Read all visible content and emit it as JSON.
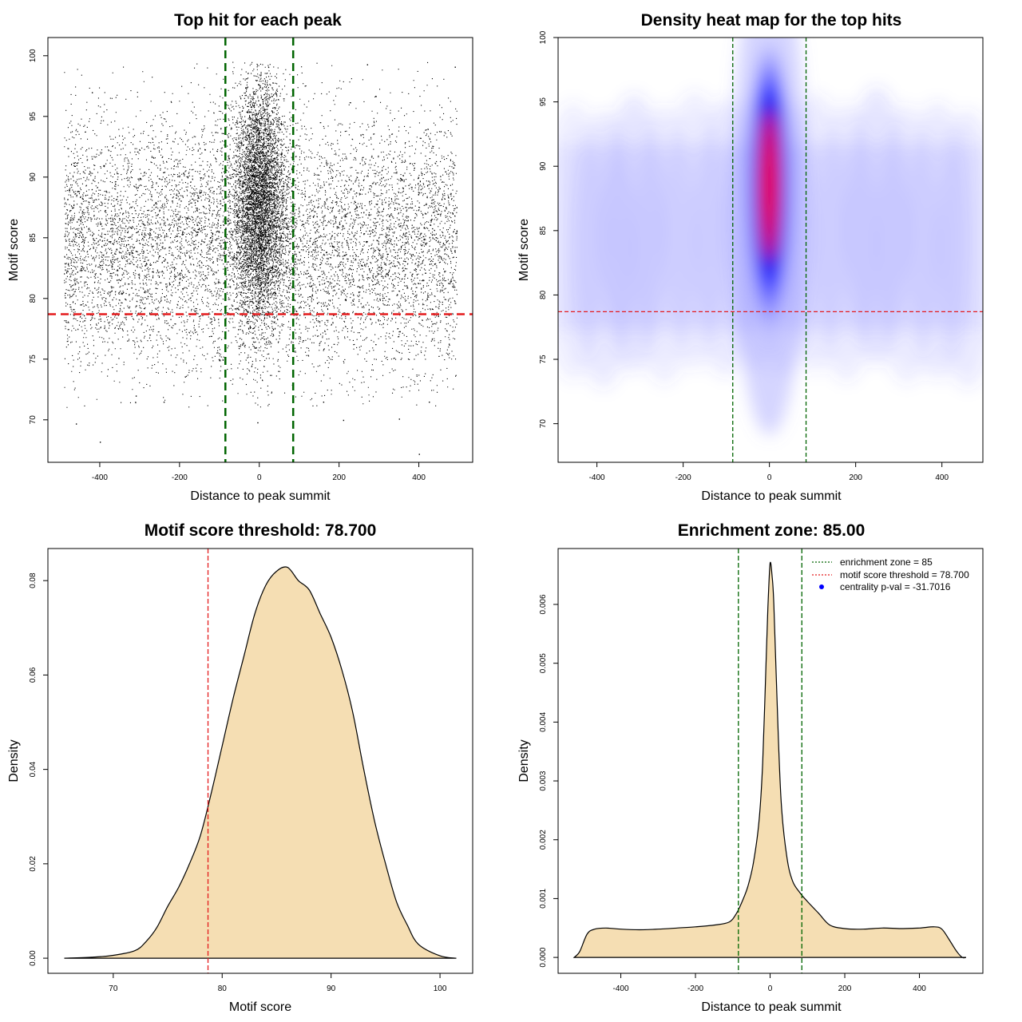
{
  "colors": {
    "threshold": "#e41a1c",
    "zone": "#006400",
    "fill": "#f5deb3",
    "points": "#000000",
    "heat_low": "#ffffff",
    "heat_mid": "#0000ff",
    "heat_high": "#ff0000"
  },
  "chart_data": [
    {
      "id": "scatter",
      "type": "scatter",
      "title": "Top hit for each peak",
      "xlabel": "Distance to peak summit",
      "ylabel": "Motif score",
      "xlim": [
        -530,
        535
      ],
      "ylim": [
        66.5,
        101.5
      ],
      "xticks": [
        -400,
        -200,
        0,
        200,
        400
      ],
      "yticks": [
        70,
        75,
        80,
        85,
        90,
        95,
        100
      ],
      "threshold": 78.7,
      "zone": [
        -85,
        85
      ],
      "background": {
        "x_range": [
          -490,
          495
        ],
        "score_mean": 84.5,
        "score_sd": 5.2
      },
      "central": {
        "x_sd": 32,
        "score_mean": 88.0,
        "score_sd": 5.0
      },
      "outliers": [
        [
          -460,
          69.7
        ],
        [
          -400,
          68.2
        ],
        [
          -240,
          71.5
        ],
        [
          -310,
          72.0
        ],
        [
          160,
          71.5
        ],
        [
          210,
          70.0
        ],
        [
          350,
          70.1
        ],
        [
          400,
          67.2
        ],
        [
          425,
          71.5
        ],
        [
          270,
          99.3
        ],
        [
          490,
          99.1
        ],
        [
          -5,
          69.8
        ],
        [
          -420,
          97.0
        ]
      ]
    },
    {
      "id": "heatmap",
      "type": "heatmap",
      "title": "Density heat map for the top hits",
      "xlabel": "Distance to peak summit",
      "ylabel": "Motif score",
      "xlim": [
        -490,
        495
      ],
      "ylim": [
        67,
        100
      ],
      "xticks": [
        -400,
        -200,
        0,
        200,
        400
      ],
      "yticks": [
        70,
        75,
        80,
        85,
        90,
        95,
        100
      ],
      "threshold": 78.7,
      "zone": [
        -85,
        85
      ],
      "peak": {
        "x": 0,
        "y": 88.5,
        "x_sd": 28,
        "y_sd": 4.2
      },
      "background": {
        "y": 84.5,
        "y_sd": 4.5
      }
    },
    {
      "id": "score_density",
      "type": "area",
      "title": "Motif score threshold: 78.700",
      "xlabel": "Motif score",
      "ylabel": "Density",
      "xlim": [
        64,
        103
      ],
      "ylim": [
        -0.0032,
        0.0868
      ],
      "xticks": [
        70,
        80,
        90,
        100
      ],
      "yticks": [
        0.0,
        0.02,
        0.04,
        0.06,
        0.08
      ],
      "ytick_labels": [
        "0.00",
        "0.02",
        "0.04",
        "0.06",
        "0.08"
      ],
      "threshold": 78.7,
      "x": [
        65.5,
        68,
        70,
        72,
        73,
        74,
        75,
        76,
        77,
        78,
        79,
        80,
        81,
        82,
        83,
        84,
        85,
        86,
        87,
        88,
        89,
        90,
        91,
        92,
        93,
        94,
        95,
        96,
        97,
        98,
        100,
        101.5
      ],
      "y": [
        0.0,
        0.0002,
        0.0006,
        0.0016,
        0.0035,
        0.0065,
        0.011,
        0.015,
        0.02,
        0.026,
        0.035,
        0.045,
        0.055,
        0.064,
        0.073,
        0.079,
        0.082,
        0.0828,
        0.08,
        0.078,
        0.073,
        0.068,
        0.061,
        0.052,
        0.04,
        0.029,
        0.02,
        0.012,
        0.007,
        0.003,
        0.0005,
        0.0
      ]
    },
    {
      "id": "distance_density",
      "type": "area",
      "title": "Enrichment zone: 85.00",
      "xlabel": "Distance to peak summit",
      "ylabel": "Density",
      "xlim": [
        -568,
        570
      ],
      "ylim": [
        -0.00027,
        0.00695
      ],
      "xticks": [
        -400,
        -200,
        0,
        200,
        400
      ],
      "yticks": [
        0.0,
        0.001,
        0.002,
        0.003,
        0.004,
        0.005,
        0.006
      ],
      "ytick_labels": [
        "0.000",
        "0.001",
        "0.002",
        "0.003",
        "0.004",
        "0.005",
        "0.006"
      ],
      "zone": [
        -85,
        85
      ],
      "x": [
        -525,
        -510,
        -490,
        -470,
        -440,
        -400,
        -350,
        -300,
        -250,
        -200,
        -150,
        -110,
        -90,
        -75,
        -60,
        -45,
        -30,
        -20,
        -10,
        -5,
        0,
        5,
        10,
        20,
        30,
        45,
        60,
        80,
        100,
        130,
        160,
        200,
        250,
        300,
        350,
        400,
        440,
        460,
        480,
        500,
        515,
        525
      ],
      "y": [
        0.0,
        0.0001,
        0.0004,
        0.00048,
        0.0005,
        0.00048,
        0.00047,
        0.00048,
        0.0005,
        0.00052,
        0.00055,
        0.0006,
        0.00075,
        0.00095,
        0.0012,
        0.0016,
        0.0023,
        0.0033,
        0.0052,
        0.0061,
        0.0067,
        0.0065,
        0.006,
        0.0041,
        0.0026,
        0.0017,
        0.0013,
        0.0011,
        0.00095,
        0.00075,
        0.00055,
        0.00049,
        0.00048,
        0.0005,
        0.00049,
        0.0005,
        0.00052,
        0.00048,
        0.0003,
        0.0001,
        0.0,
        0.0
      ],
      "legend": [
        {
          "label": "enrichment zone = 85",
          "color": "#006400",
          "symbol": "dotted-line"
        },
        {
          "label": "motif score threshold = 78.700",
          "color": "#e41a1c",
          "symbol": "dotted-line"
        },
        {
          "label": "centrality p-val = -31.7016",
          "color": "#0000ff",
          "symbol": "dot"
        }
      ],
      "legend_position": "top-right"
    }
  ]
}
